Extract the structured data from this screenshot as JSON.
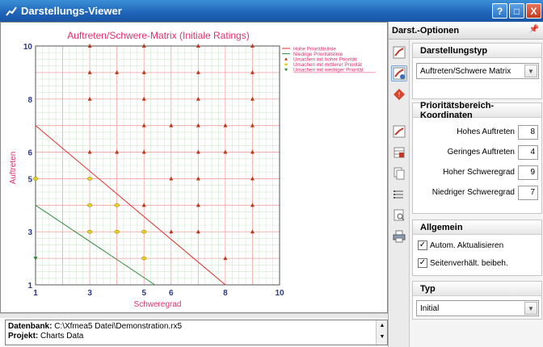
{
  "window": {
    "title": "Darstellungs-Viewer",
    "help_btn": "?",
    "restore_btn": "□",
    "close_btn": "X"
  },
  "chart_data": {
    "type": "scatter",
    "title": "Auftreten/Schwere-Matrix (Initiale Ratings)",
    "xlabel": "Schweregrad",
    "ylabel": "Auftreten",
    "xlim": [
      1,
      10
    ],
    "ylim": [
      1,
      10
    ],
    "xticks": [
      "1",
      "3",
      "5",
      "6",
      "8",
      "10"
    ],
    "yticks": [
      "1",
      "3",
      "5",
      "6",
      "8",
      "10"
    ],
    "grid": true,
    "legend_position": "top-right",
    "legend": [
      "Hohe Prioritätslinie",
      "Niedrige Prioritätslinie",
      "Ursachen mit hoher Priorität",
      "Ursachen mit mittlerer Priorität",
      "Ursachen mit niedriger Priorität"
    ],
    "lines": [
      {
        "name": "Hohe Prioritätslinie",
        "color": "#e03030",
        "x": [
          1,
          8
        ],
        "y": [
          7,
          1
        ]
      },
      {
        "name": "Niedrige Prioritätslinie",
        "color": "#2e8b3a",
        "x": [
          1,
          5.4
        ],
        "y": [
          4,
          1
        ]
      }
    ],
    "series": [
      {
        "name": "Ursachen mit hoher Priorität",
        "color": "#b83b1b",
        "points": [
          [
            3,
            10
          ],
          [
            5,
            10
          ],
          [
            7,
            10
          ],
          [
            9,
            10
          ],
          [
            3,
            9
          ],
          [
            4,
            9
          ],
          [
            5,
            9
          ],
          [
            7,
            9
          ],
          [
            9,
            9
          ],
          [
            3,
            8
          ],
          [
            5,
            8
          ],
          [
            7,
            8
          ],
          [
            9,
            8
          ],
          [
            5,
            7
          ],
          [
            6,
            7
          ],
          [
            7,
            7
          ],
          [
            8,
            7
          ],
          [
            9,
            7
          ],
          [
            3,
            6
          ],
          [
            4,
            6
          ],
          [
            5,
            6
          ],
          [
            7,
            6
          ],
          [
            8,
            6
          ],
          [
            9,
            6
          ],
          [
            6,
            5
          ],
          [
            7,
            5
          ],
          [
            9,
            5
          ],
          [
            5,
            4
          ],
          [
            7,
            4
          ],
          [
            9,
            4
          ],
          [
            6,
            3
          ],
          [
            7,
            3
          ],
          [
            9,
            3
          ],
          [
            8,
            2
          ]
        ]
      },
      {
        "name": "Ursachen mit mittlerer Priorität",
        "color": "#e6d21c",
        "points": [
          [
            1,
            5
          ],
          [
            3,
            5
          ],
          [
            3,
            4
          ],
          [
            4,
            4
          ],
          [
            3,
            3
          ],
          [
            4,
            3
          ],
          [
            5,
            3
          ],
          [
            5,
            2
          ]
        ]
      },
      {
        "name": "Ursachen mit niedriger Priorität",
        "color": "#2e8b3a",
        "points": [
          [
            1,
            2
          ]
        ]
      }
    ]
  },
  "info": {
    "db_label": "Datenbank:",
    "db_value": "C:\\Xfmea5 Datei\\Demonstration.rx5",
    "project_label": "Projekt:",
    "project_value": "Charts Data"
  },
  "panel": {
    "header": "Darst.-Optionen",
    "pin_icon": "pin-icon",
    "darstellungstyp": {
      "heading": "Darstellungstyp",
      "selected": "Auftreten/Schwere Matrix"
    },
    "coords": {
      "heading": "Prioritätsbereich-Koordinaten",
      "rows": [
        {
          "label": "Hohes Auftreten",
          "value": "8"
        },
        {
          "label": "Geringes Auftreten",
          "value": "4"
        },
        {
          "label": "Hoher Schweregrad",
          "value": "9"
        },
        {
          "label": "Niedriger Schweregrad",
          "value": "7"
        }
      ]
    },
    "allgemein": {
      "heading": "Allgemein",
      "auto_update": "Autom. Aktualisieren",
      "keep_ratio": "Seitenverhält. beibeh."
    },
    "typ": {
      "heading": "Typ",
      "selected": "Initial"
    }
  }
}
